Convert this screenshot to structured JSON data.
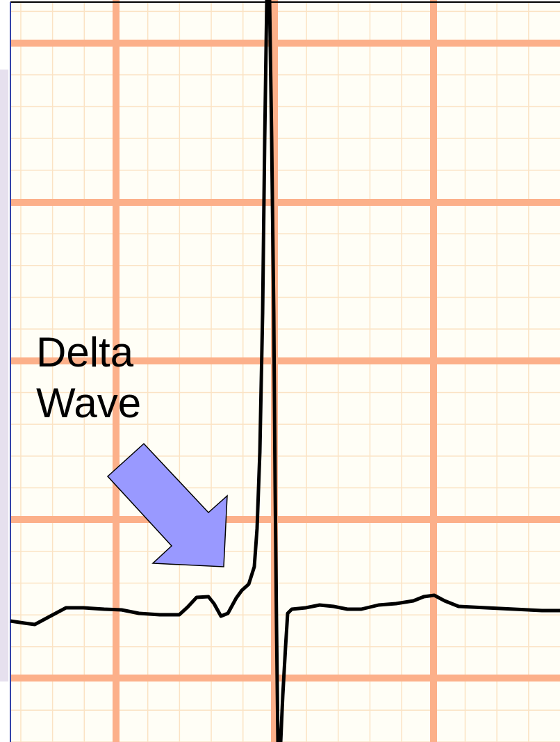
{
  "annotation": {
    "lines": [
      "Delta",
      "Wave"
    ]
  }
}
